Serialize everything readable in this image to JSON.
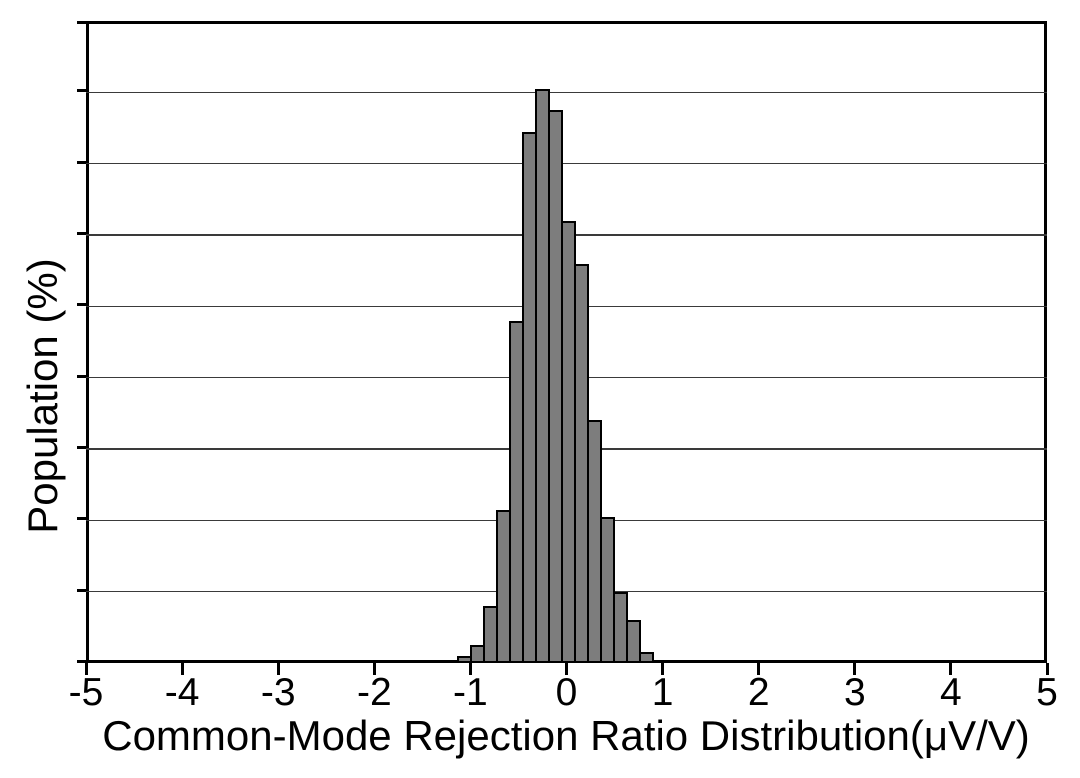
{
  "chart_data": {
    "type": "bar",
    "subtype": "histogram",
    "title": "",
    "xlabel": "Common-Mode Rejection Ratio Distribution(μV/V)",
    "ylabel": "Population (%)",
    "unit_y": "%",
    "xlim": [
      -5,
      5
    ],
    "ylim": [
      0,
      18
    ],
    "xticks": [
      -5,
      -4,
      -3,
      -2,
      -1,
      0,
      1,
      2,
      3,
      4,
      5
    ],
    "xtick_labels": [
      "-5",
      "-4",
      "-3",
      "-2",
      "-1",
      "0",
      "1",
      "2",
      "3",
      "4",
      "5"
    ],
    "yticks": [
      0,
      2,
      4,
      6,
      8,
      10,
      12,
      14,
      16,
      18
    ],
    "ytick_labels_shown": false,
    "grid": "horizontal",
    "legend": "none",
    "bin_edges": [
      -1.13,
      -0.995,
      -0.86,
      -0.725,
      -0.59,
      -0.455,
      -0.32,
      -0.185,
      -0.05,
      0.085,
      0.22,
      0.355,
      0.49,
      0.625,
      0.76,
      0.895
    ],
    "values": [
      0.2,
      0.5,
      1.6,
      4.3,
      9.6,
      14.9,
      16.1,
      15.5,
      12.4,
      11.2,
      6.8,
      4.1,
      2.0,
      1.2,
      0.3
    ],
    "bar_fill": "#7d7d7d",
    "bar_edge": "#000000",
    "frame_color": "#000000",
    "gridline_color": "#3a3a3a",
    "background_color": "#ffffff",
    "text_color": "#000000"
  }
}
